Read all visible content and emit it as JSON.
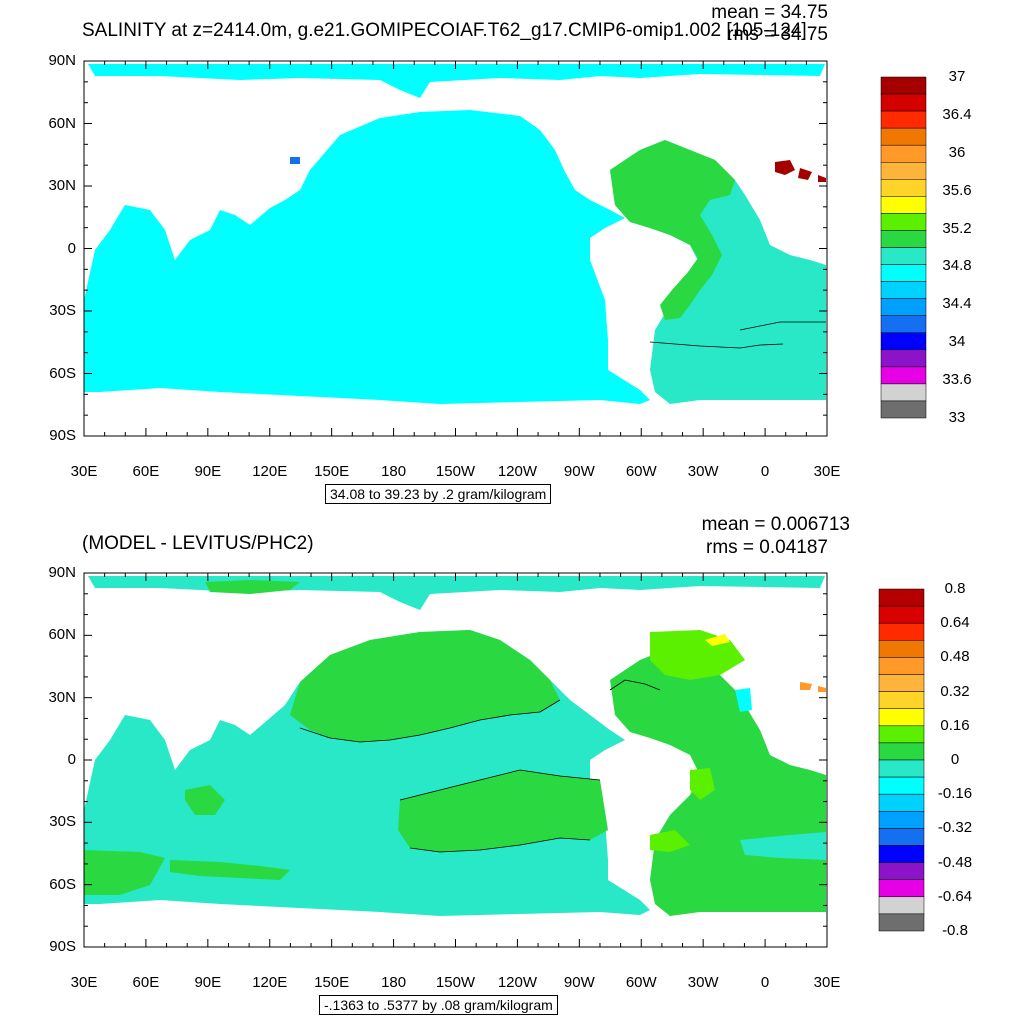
{
  "top_panel": {
    "title": "SALINITY at z=2414.0m, g.e21.GOMIPECOIAF.T62_g17.CMIP6-omip1.002 [105-124]",
    "mean_text": "mean = 34.75",
    "rms_text": "rms = 34.75",
    "info_text": "34.08 to 39.23 by .2 gram/kilogram",
    "colorbar_labels": [
      "37",
      "36.4",
      "36",
      "35.6",
      "35.2",
      "34.8",
      "34.4",
      "34",
      "33.6",
      "33"
    ],
    "colorbar_colors": [
      "#a50000",
      "#d40000",
      "#ff2a00",
      "#f07800",
      "#ff9a28",
      "#ffb43c",
      "#ffd428",
      "#ffff00",
      "#5af000",
      "#2ad842",
      "#28e8c8",
      "#00ffff",
      "#00d2ff",
      "#00a0ff",
      "#1470f0",
      "#0000ff",
      "#8c14c8",
      "#e600e6",
      "#d2d2d2",
      "#6e6e6e"
    ]
  },
  "bottom_panel": {
    "title": "(MODEL - LEVITUS/PHC2)",
    "mean_text": "mean = 0.006713",
    "rms_text": "rms = 0.04187",
    "info_text": "-.1363 to .5377 by .08 gram/kilogram",
    "colorbar_labels": [
      "0.8",
      "0.64",
      "0.48",
      "0.32",
      "0.16",
      "0",
      "-0.16",
      "-0.32",
      "-0.48",
      "-0.64",
      "-0.8"
    ],
    "colorbar_colors": [
      "#b40000",
      "#d80000",
      "#ff2a00",
      "#f07800",
      "#ff9a28",
      "#ffb43c",
      "#ffd428",
      "#ffff00",
      "#5af000",
      "#2ad842",
      "#28e8c8",
      "#00ffff",
      "#00d2ff",
      "#00a0ff",
      "#1470f0",
      "#0000ff",
      "#8c14c8",
      "#e600e6",
      "#d2d2d2",
      "#6e6e6e"
    ]
  },
  "axes": {
    "lat_labels": [
      "90N",
      "60N",
      "30N",
      "0",
      "30S",
      "60S",
      "90S"
    ],
    "lon_labels": [
      "30E",
      "60E",
      "90E",
      "120E",
      "150E",
      "180",
      "150W",
      "120W",
      "90W",
      "60W",
      "30W",
      "0",
      "30E"
    ]
  },
  "colors": {
    "ocean_top": "#00ffff",
    "atlantic_top": "#28e8c8",
    "atlantic_green_top": "#2ad842",
    "ocean_bottom": "#28e8c8",
    "green_bottom": "#2ad842",
    "yellowgreen_bottom": "#5af000"
  }
}
